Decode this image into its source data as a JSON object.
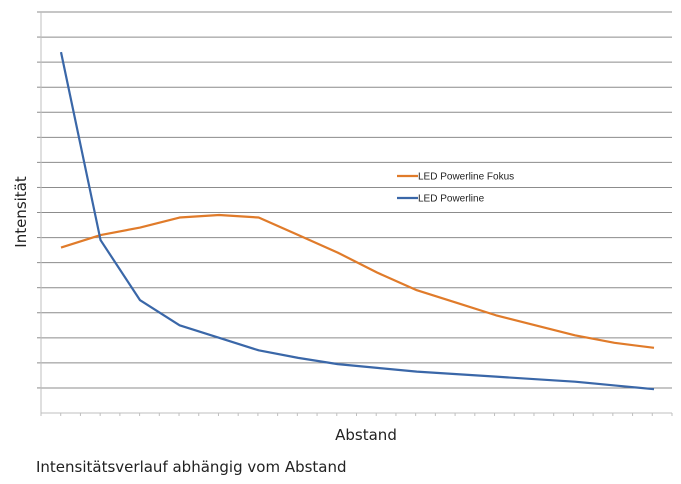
{
  "chart_data": {
    "type": "line",
    "title": "",
    "xlabel": "Abstand",
    "ylabel": "Intensität",
    "ylim": [
      0,
      16
    ],
    "grid": true,
    "legend_position": "right-center",
    "x": [
      1,
      2,
      3,
      4,
      5,
      6,
      7,
      8,
      9,
      10,
      11,
      12,
      13,
      14,
      15,
      16
    ],
    "series": [
      {
        "name": "LED Powerline Fokus",
        "color": "#e07b2a",
        "values": [
          6.6,
          7.1,
          7.4,
          7.8,
          7.9,
          7.8,
          7.1,
          6.4,
          5.6,
          4.9,
          4.4,
          3.9,
          3.5,
          3.1,
          2.8,
          2.6
        ]
      },
      {
        "name": "LED Powerline",
        "color": "#3a67a8",
        "values": [
          14.4,
          6.9,
          4.5,
          3.5,
          3.0,
          2.5,
          2.2,
          1.95,
          1.8,
          1.65,
          1.55,
          1.45,
          1.35,
          1.25,
          1.1,
          0.95
        ]
      }
    ]
  },
  "caption": "Intensitätsverlauf abhängig vom Abstand"
}
